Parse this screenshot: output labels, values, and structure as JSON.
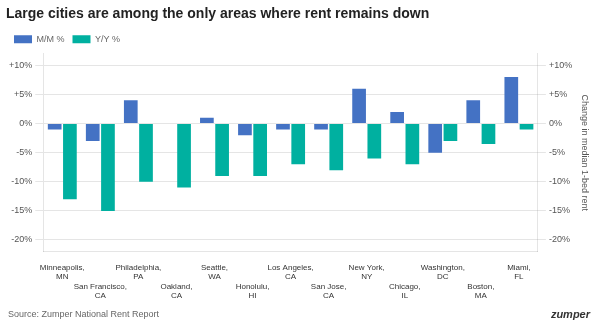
{
  "chart_data": {
    "type": "bar",
    "title": "Large cities are among the only areas where rent remains down",
    "categories": [
      "Minneapolis,\nMN",
      "San Francisco,\nCA",
      "Philadelphia,\nPA",
      "Oakland,\nCA",
      "Seattle,\nWA",
      "Honolulu,\nHI",
      "Los Angeles,\nCA",
      "San Jose,\nCA",
      "New York,\nNY",
      "Chicago,\nIL",
      "Washington,\nDC",
      "Boston,\nMA",
      "Miami,\nFL"
    ],
    "series": [
      {
        "name": "M/M %",
        "color": "#4472C4",
        "values": [
          -1.0,
          -3.0,
          4.0,
          0.0,
          1.0,
          -2.0,
          -1.0,
          -1.0,
          6.0,
          2.0,
          -5.0,
          4.0,
          8.0
        ]
      },
      {
        "name": "Y/Y %",
        "color": "#00B0A0",
        "values": [
          -13.0,
          -15.0,
          -10.0,
          -11.0,
          -9.0,
          -9.0,
          -7.0,
          -8.0,
          -6.0,
          -7.0,
          -3.0,
          -3.5,
          -1.0
        ]
      }
    ],
    "ylim": [
      -22,
      12
    ],
    "yticks": [
      {
        "value": -20,
        "label": "-20%"
      },
      {
        "value": -15,
        "label": "-15%"
      },
      {
        "value": -10,
        "label": "-10%"
      },
      {
        "value": -5,
        "label": "-5%"
      },
      {
        "value": 0,
        "label": "0%"
      },
      {
        "value": 5,
        "label": "+5%"
      },
      {
        "value": 10,
        "label": "+10%"
      }
    ],
    "y2label": "Change in median 1-bed rent",
    "y2lim": [
      -22,
      12
    ],
    "y2ticks": [
      {
        "value": -20,
        "label": "-20%"
      },
      {
        "value": -15,
        "label": "-15%"
      },
      {
        "value": -10,
        "label": "-10%"
      },
      {
        "value": -5,
        "label": "-5%"
      },
      {
        "value": 0,
        "label": "0%"
      },
      {
        "value": 5,
        "label": "+5%"
      },
      {
        "value": 10,
        "label": "+10%"
      }
    ],
    "grid": true,
    "legend": "upper left",
    "annotations": [
      "Source: Zumper National Rent Report",
      "zumper"
    ]
  }
}
